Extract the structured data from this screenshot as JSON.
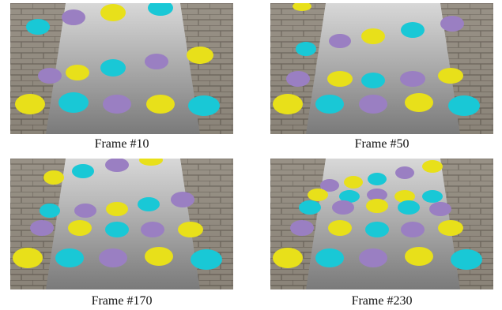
{
  "figure": {
    "panels": [
      {
        "caption": "Frame #10"
      },
      {
        "caption": "Frame #50"
      },
      {
        "caption": "Frame #170"
      },
      {
        "caption": "Frame #230"
      }
    ]
  },
  "palette": {
    "yellow": "#e8e01a",
    "cyan": "#19c8d6",
    "purple": "#9a7fc2",
    "wall": "#8a8275",
    "floor": "#b9b9b9"
  }
}
